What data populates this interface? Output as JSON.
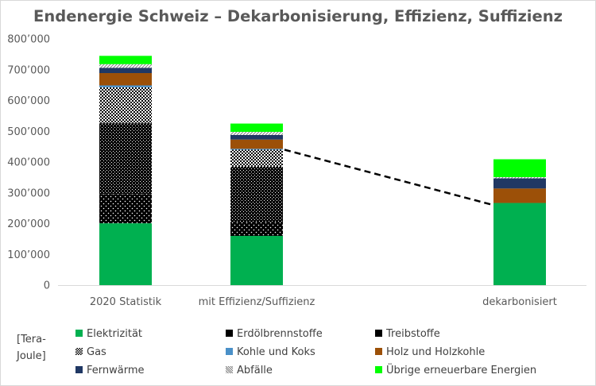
{
  "chart_data": {
    "type": "bar",
    "stacked": true,
    "title": "Endenergie Schweiz – Dekarbonisierung, Effizienz, Suffizienz",
    "unit_label": "[Tera-Joule]",
    "unit_label_lines": [
      "[Tera-",
      "Joule]"
    ],
    "categories": [
      "2020 Statistik",
      "mit Effizienz/Suffizienz",
      "dekarbonisiert"
    ],
    "ylim": [
      0,
      800000
    ],
    "yticks": [
      0,
      100000,
      200000,
      300000,
      400000,
      500000,
      600000,
      700000,
      800000
    ],
    "ytick_labels": [
      "0",
      "100’000",
      "200’000",
      "300’000",
      "400’000",
      "500’000",
      "600’000",
      "700’000",
      "800’000"
    ],
    "grid": false,
    "legend_position": "bottom",
    "series": [
      {
        "name": "Elektrizität",
        "color": "#00b050",
        "pattern": "solid",
        "values": [
          201000,
          160000,
          267000
        ]
      },
      {
        "name": "Erdölbrennstoffe",
        "color": "#000000",
        "pattern": "dots",
        "values": [
          95000,
          45000,
          0
        ]
      },
      {
        "name": "Treibstoffe",
        "color": "#000000",
        "pattern": "grain",
        "values": [
          230000,
          180000,
          0
        ]
      },
      {
        "name": "Gas",
        "color": "#000000",
        "pattern": "checker",
        "values": [
          117000,
          55000,
          0
        ]
      },
      {
        "name": "Kohle und Koks",
        "color": "#4a90c8",
        "pattern": "solid",
        "values": [
          6000,
          3000,
          0
        ]
      },
      {
        "name": "Holz und Holzkohle",
        "color": "#9c5008",
        "pattern": "solid",
        "values": [
          40000,
          30000,
          47000
        ]
      },
      {
        "name": "Fernwärme",
        "color": "#203864",
        "pattern": "solid",
        "values": [
          17000,
          15000,
          33000
        ]
      },
      {
        "name": "Abfälle",
        "color": "#9a9a9a",
        "pattern": "hatch",
        "values": [
          12000,
          10000,
          4000
        ]
      },
      {
        "name": "Übrige erneuerbare Energien",
        "color": "#00ff00",
        "pattern": "solid",
        "values": [
          27000,
          27000,
          58000
        ]
      }
    ],
    "trend_line": {
      "style": "dashed",
      "from_category": 1,
      "to_category": 2,
      "from_value": 440000,
      "to_value": 262000
    }
  }
}
